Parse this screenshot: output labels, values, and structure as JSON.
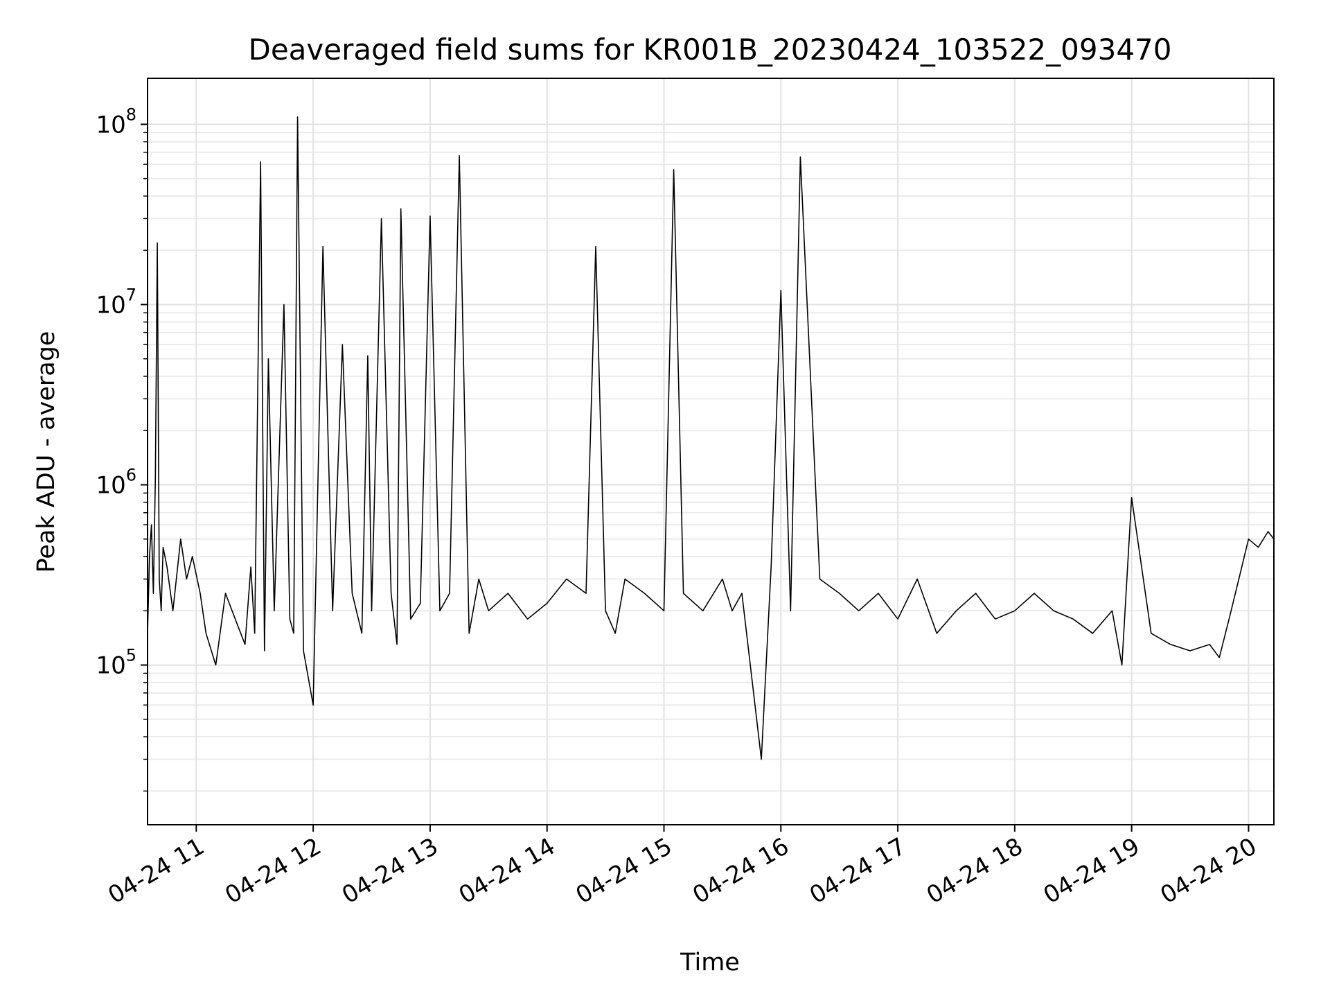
{
  "chart_data": {
    "type": "line",
    "title": "Deaveraged field sums for KR001B_20230424_103522_093470",
    "xlabel": "Time",
    "ylabel": "Peak ADU - average",
    "yscale": "log",
    "ylim": [
      13000,
      180000000
    ],
    "xlim": [
      "2023-04-24 10:35",
      "2023-04-24 20:13"
    ],
    "grid": true,
    "line_color": "#000000",
    "x_ticks": [
      "04-24 11",
      "04-24 12",
      "04-24 13",
      "04-24 14",
      "04-24 15",
      "04-24 16",
      "04-24 17",
      "04-24 18",
      "04-24 19",
      "04-24 20"
    ],
    "y_ticks": [
      {
        "base": "10",
        "exp": "5",
        "value": 100000
      },
      {
        "base": "10",
        "exp": "6",
        "value": 1000000
      },
      {
        "base": "10",
        "exp": "7",
        "value": 10000000
      },
      {
        "base": "10",
        "exp": "8",
        "value": 100000000
      }
    ],
    "series": [
      {
        "x": [
          "2023-04-24 10:35",
          "2023-04-24 10:36",
          "2023-04-24 10:37",
          "2023-04-24 10:38",
          "2023-04-24 10:39",
          "2023-04-24 10:40",
          "2023-04-24 10:41",
          "2023-04-24 10:42",
          "2023-04-24 10:43",
          "2023-04-24 10:45",
          "2023-04-24 10:48",
          "2023-04-24 10:52",
          "2023-04-24 10:55",
          "2023-04-24 10:58",
          "2023-04-24 11:02",
          "2023-04-24 11:05",
          "2023-04-24 11:10",
          "2023-04-24 11:15",
          "2023-04-24 11:20",
          "2023-04-24 11:25",
          "2023-04-24 11:28",
          "2023-04-24 11:30",
          "2023-04-24 11:33",
          "2023-04-24 11:35",
          "2023-04-24 11:37",
          "2023-04-24 11:40",
          "2023-04-24 11:45",
          "2023-04-24 11:48",
          "2023-04-24 11:50",
          "2023-04-24 11:52",
          "2023-04-24 11:55",
          "2023-04-24 12:00",
          "2023-04-24 12:05",
          "2023-04-24 12:10",
          "2023-04-24 12:15",
          "2023-04-24 12:20",
          "2023-04-24 12:25",
          "2023-04-24 12:28",
          "2023-04-24 12:30",
          "2023-04-24 12:35",
          "2023-04-24 12:40",
          "2023-04-24 12:43",
          "2023-04-24 12:45",
          "2023-04-24 12:50",
          "2023-04-24 12:55",
          "2023-04-24 13:00",
          "2023-04-24 13:05",
          "2023-04-24 13:10",
          "2023-04-24 13:15",
          "2023-04-24 13:20",
          "2023-04-24 13:25",
          "2023-04-24 13:30",
          "2023-04-24 13:40",
          "2023-04-24 13:50",
          "2023-04-24 14:00",
          "2023-04-24 14:10",
          "2023-04-24 14:20",
          "2023-04-24 14:25",
          "2023-04-24 14:30",
          "2023-04-24 14:35",
          "2023-04-24 14:40",
          "2023-04-24 14:50",
          "2023-04-24 15:00",
          "2023-04-24 15:05",
          "2023-04-24 15:10",
          "2023-04-24 15:20",
          "2023-04-24 15:30",
          "2023-04-24 15:35",
          "2023-04-24 15:40",
          "2023-04-24 15:50",
          "2023-04-24 15:55",
          "2023-04-24 16:00",
          "2023-04-24 16:05",
          "2023-04-24 16:10",
          "2023-04-24 16:20",
          "2023-04-24 16:30",
          "2023-04-24 16:40",
          "2023-04-24 16:50",
          "2023-04-24 17:00",
          "2023-04-24 17:10",
          "2023-04-24 17:20",
          "2023-04-24 17:30",
          "2023-04-24 17:40",
          "2023-04-24 17:50",
          "2023-04-24 18:00",
          "2023-04-24 18:10",
          "2023-04-24 18:20",
          "2023-04-24 18:30",
          "2023-04-24 18:40",
          "2023-04-24 18:50",
          "2023-04-24 18:55",
          "2023-04-24 19:00",
          "2023-04-24 19:10",
          "2023-04-24 19:20",
          "2023-04-24 19:30",
          "2023-04-24 19:40",
          "2023-04-24 19:45",
          "2023-04-24 19:50",
          "2023-04-24 19:55",
          "2023-04-24 20:00",
          "2023-04-24 20:05",
          "2023-04-24 20:10",
          "2023-04-24 20:13"
        ],
        "values": [
          150000,
          400000,
          600000,
          250000,
          1100000,
          22000000,
          300000,
          200000,
          450000,
          350000,
          200000,
          500000,
          300000,
          400000,
          250000,
          150000,
          100000,
          250000,
          180000,
          130000,
          350000,
          150000,
          62000000,
          120000,
          5000000,
          200000,
          10000000,
          180000,
          150000,
          110000000,
          120000,
          60000,
          21000000,
          200000,
          6000000,
          250000,
          150000,
          5200000,
          200000,
          30000000,
          250000,
          130000,
          34000000,
          180000,
          220000,
          31000000,
          200000,
          250000,
          67000000,
          150000,
          300000,
          200000,
          250000,
          180000,
          220000,
          300000,
          250000,
          21000000,
          200000,
          150000,
          300000,
          250000,
          200000,
          56000000,
          250000,
          200000,
          300000,
          200000,
          250000,
          30000,
          350000,
          12000000,
          200000,
          66000000,
          300000,
          250000,
          200000,
          250000,
          180000,
          300000,
          150000,
          200000,
          250000,
          180000,
          200000,
          250000,
          200000,
          180000,
          150000,
          200000,
          100000,
          850000,
          150000,
          130000,
          120000,
          130000,
          110000,
          180000,
          300000,
          500000,
          450000,
          550000,
          500000
        ]
      }
    ]
  }
}
